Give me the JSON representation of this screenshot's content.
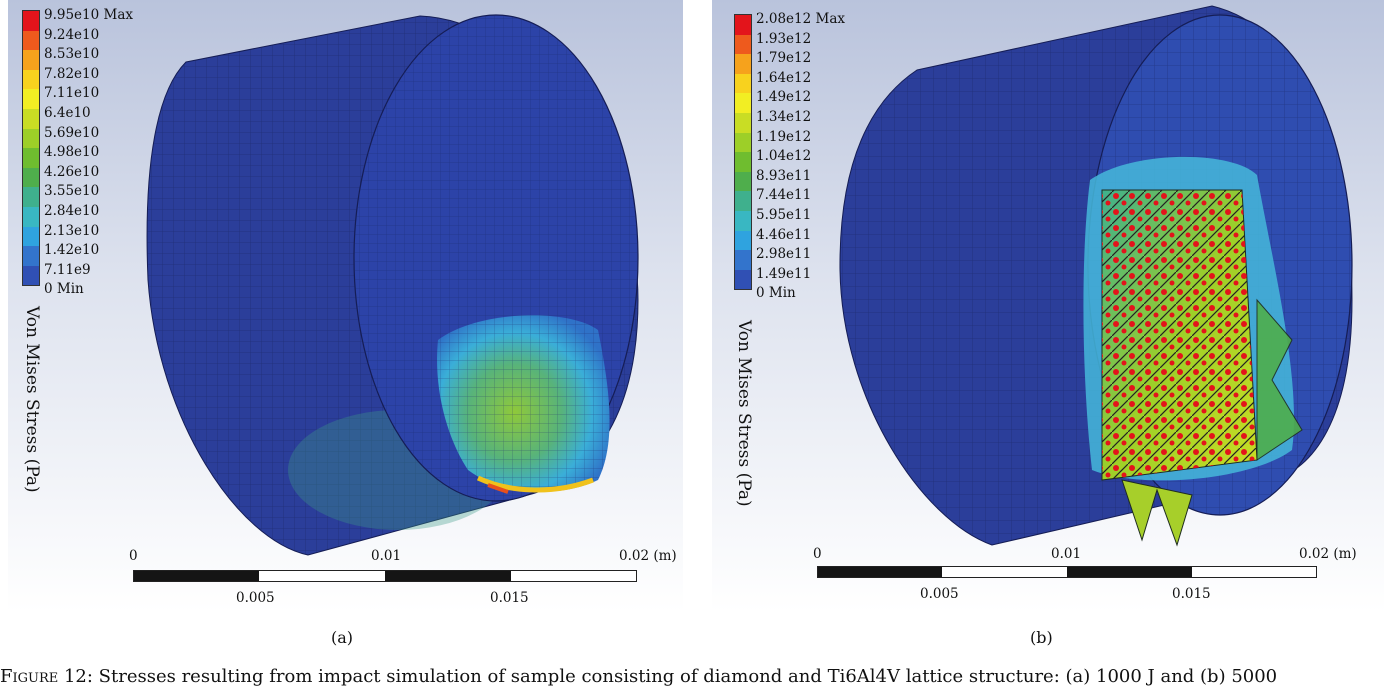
{
  "panels": [
    {
      "id": "a",
      "legend": {
        "labels": [
          "9.95e10 Max",
          "9.24e10",
          "8.53e10",
          "7.82e10",
          "7.11e10",
          "6.4e10",
          "5.69e10",
          "4.98e10",
          "4.26e10",
          "3.55e10",
          "2.84e10",
          "2.13e10",
          "1.42e10",
          "7.11e9",
          "0 Min"
        ],
        "title": "Von Mises Stress (Pa)"
      },
      "scale": {
        "top_labels": [
          "0",
          "0.01",
          "0.02 (m)"
        ],
        "bottom_labels": [
          "0.005",
          "0.015"
        ]
      },
      "sublabel": "(a)"
    },
    {
      "id": "b",
      "legend": {
        "labels": [
          "2.08e12 Max",
          "1.93e12",
          "1.79e12",
          "1.64e12",
          "1.49e12",
          "1.34e12",
          "1.19e12",
          "1.04e12",
          "8.93e11",
          "7.44e11",
          "5.95e11",
          "4.46e11",
          "2.98e11",
          "1.49e11",
          "0 Min"
        ],
        "title": "Von Mises Stress (Pa)"
      },
      "scale": {
        "top_labels": [
          "0",
          "0.01",
          "0.02 (m)"
        ],
        "bottom_labels": [
          "0.005",
          "0.015"
        ]
      },
      "sublabel": "(b)"
    }
  ],
  "legend_colors": [
    "#e3141b",
    "#ee5a1d",
    "#f6a21c",
    "#f8d21e",
    "#f2ee23",
    "#c9dd24",
    "#9dcf28",
    "#6fbd2f",
    "#4fae4c",
    "#3fb08d",
    "#39b7c2",
    "#2fa3df",
    "#3374cc",
    "#3050b4",
    "#27288f"
  ],
  "caption": {
    "prefix": "Figure 12:",
    "text": "Stresses resulting from impact simulation of sample consisting of diamond and Ti6Al4V lattice structure: (a) 1000 J and (b) 5000"
  }
}
